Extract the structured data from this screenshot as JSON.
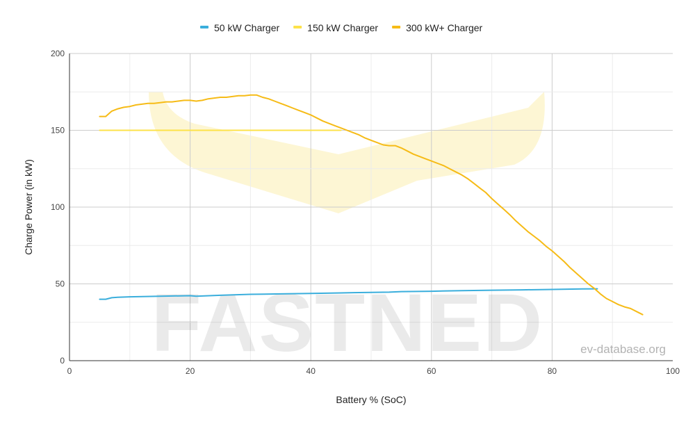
{
  "chart_data": {
    "type": "line",
    "title": "",
    "xlabel": "Battery % (SoC)",
    "ylabel": "Charge Power (in kW)",
    "xlim": [
      0,
      100
    ],
    "ylim": [
      0,
      200
    ],
    "x_ticks": [
      0,
      20,
      40,
      60,
      80,
      100
    ],
    "y_ticks": [
      0,
      50,
      100,
      150,
      200
    ],
    "grid": true,
    "legend_position": "top",
    "series": [
      {
        "name": "50 kW Charger",
        "color": "#3aaedc",
        "points": [
          [
            5,
            40
          ],
          [
            6,
            40
          ],
          [
            7,
            41
          ],
          [
            8,
            41.3
          ],
          [
            10,
            41.6
          ],
          [
            15,
            42
          ],
          [
            20,
            42.3
          ],
          [
            21,
            42
          ],
          [
            25,
            42.6
          ],
          [
            30,
            43.2
          ],
          [
            35,
            43.5
          ],
          [
            40,
            43.8
          ],
          [
            45,
            44.1
          ],
          [
            50,
            44.5
          ],
          [
            53,
            44.6
          ],
          [
            55,
            45
          ],
          [
            60,
            45.2
          ],
          [
            65,
            45.6
          ],
          [
            70,
            45.9
          ],
          [
            75,
            46.1
          ],
          [
            80,
            46.4
          ],
          [
            85,
            46.7
          ],
          [
            87.5,
            46.8
          ]
        ]
      },
      {
        "name": "150 kW Charger",
        "color": "#fde249",
        "points": [
          [
            5,
            150
          ],
          [
            45,
            150
          ]
        ]
      },
      {
        "name": "300 kW+ Charger",
        "color": "#f6bb16",
        "points": [
          [
            5,
            159
          ],
          [
            6,
            159
          ],
          [
            7,
            162.5
          ],
          [
            8,
            164
          ],
          [
            9,
            165
          ],
          [
            10,
            165.5
          ],
          [
            11,
            166.5
          ],
          [
            12,
            167
          ],
          [
            13,
            167.5
          ],
          [
            14,
            167.5
          ],
          [
            15,
            168
          ],
          [
            16,
            168.5
          ],
          [
            17,
            168.5
          ],
          [
            18,
            169
          ],
          [
            19,
            169.5
          ],
          [
            20,
            169.5
          ],
          [
            21,
            169
          ],
          [
            22,
            169.5
          ],
          [
            23,
            170.5
          ],
          [
            24,
            171
          ],
          [
            25,
            171.5
          ],
          [
            26,
            171.5
          ],
          [
            27,
            172
          ],
          [
            28,
            172.5
          ],
          [
            29,
            172.5
          ],
          [
            30,
            173
          ],
          [
            31,
            173
          ],
          [
            32,
            171.5
          ],
          [
            33,
            170.5
          ],
          [
            34,
            169
          ],
          [
            35,
            167.5
          ],
          [
            36,
            166
          ],
          [
            37,
            164.5
          ],
          [
            38,
            163
          ],
          [
            39,
            161.5
          ],
          [
            40,
            160
          ],
          [
            41,
            158
          ],
          [
            42,
            156
          ],
          [
            43,
            154.5
          ],
          [
            44,
            153
          ],
          [
            45,
            151.5
          ],
          [
            46,
            150
          ],
          [
            47,
            148.5
          ],
          [
            48,
            147
          ],
          [
            49,
            145
          ],
          [
            50,
            143.5
          ],
          [
            51,
            142
          ],
          [
            52,
            140.5
          ],
          [
            53,
            140
          ],
          [
            54,
            140
          ],
          [
            55,
            138.5
          ],
          [
            56,
            136.5
          ],
          [
            57,
            134.5
          ],
          [
            58,
            133
          ],
          [
            59,
            131.5
          ],
          [
            60,
            130
          ],
          [
            61,
            128.5
          ],
          [
            62,
            127
          ],
          [
            63,
            125
          ],
          [
            64,
            123
          ],
          [
            65,
            121
          ],
          [
            66,
            118.5
          ],
          [
            67,
            115.5
          ],
          [
            68,
            112.5
          ],
          [
            69,
            109.5
          ],
          [
            70,
            105.5
          ],
          [
            71,
            102
          ],
          [
            72,
            98.5
          ],
          [
            73,
            95
          ],
          [
            74,
            91
          ],
          [
            75,
            87.5
          ],
          [
            76,
            84
          ],
          [
            77,
            81
          ],
          [
            78,
            78
          ],
          [
            79,
            74.5
          ],
          [
            80,
            71.5
          ],
          [
            81,
            68
          ],
          [
            82,
            64.5
          ],
          [
            83,
            60.5
          ],
          [
            84,
            57
          ],
          [
            85,
            53.5
          ],
          [
            86,
            50
          ],
          [
            87,
            47
          ],
          [
            88,
            43.5
          ],
          [
            89,
            40.5
          ],
          [
            90,
            38.5
          ],
          [
            91,
            36.5
          ],
          [
            92,
            35
          ],
          [
            93,
            34
          ],
          [
            94,
            32
          ],
          [
            95,
            30
          ]
        ]
      }
    ]
  },
  "watermark": {
    "logo_text": "FASTNED",
    "credit_text": "ev-database.org"
  },
  "colors": {
    "grid": "#d9d9d9",
    "axis": "#333333",
    "watermark_chevron": "#fdf6d4"
  }
}
